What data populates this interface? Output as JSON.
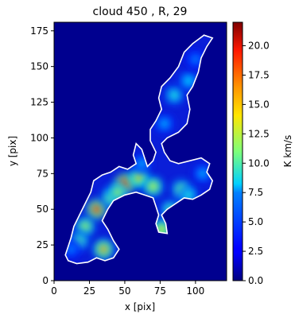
{
  "chart_data": {
    "type": "heatmap",
    "title": "cloud 450 , R, 29",
    "xlabel": "x [pix]",
    "ylabel": "y [pix]",
    "xlim": [
      0,
      122
    ],
    "ylim": [
      0,
      181
    ],
    "xticks": [
      0,
      25,
      50,
      75,
      100
    ],
    "yticks": [
      0,
      25,
      50,
      75,
      100,
      125,
      150,
      175
    ],
    "colorbar": {
      "label": "K km/s",
      "range": [
        0.0,
        22.0
      ],
      "ticks": [
        "0.0",
        "2.5",
        "5.0",
        "7.5",
        "10.0",
        "12.5",
        "15.0",
        "17.5",
        "20.0"
      ],
      "colormap": "jet"
    },
    "background_color": "#00008f",
    "contour_color": "#ffffff",
    "emission_blobs": [
      {
        "x": 30,
        "y": 50,
        "value": 18
      },
      {
        "x": 35,
        "y": 22,
        "value": 16
      },
      {
        "x": 50,
        "y": 68,
        "value": 19
      },
      {
        "x": 60,
        "y": 72,
        "value": 15
      },
      {
        "x": 70,
        "y": 66,
        "value": 13
      },
      {
        "x": 22,
        "y": 38,
        "value": 12
      },
      {
        "x": 18,
        "y": 28,
        "value": 10
      },
      {
        "x": 40,
        "y": 58,
        "value": 11
      },
      {
        "x": 82,
        "y": 50,
        "value": 10
      },
      {
        "x": 90,
        "y": 64,
        "value": 11
      },
      {
        "x": 76,
        "y": 36,
        "value": 14
      },
      {
        "x": 95,
        "y": 60,
        "value": 9
      },
      {
        "x": 85,
        "y": 130,
        "value": 9
      },
      {
        "x": 95,
        "y": 140,
        "value": 8
      },
      {
        "x": 78,
        "y": 110,
        "value": 7
      },
      {
        "x": 100,
        "y": 155,
        "value": 6
      },
      {
        "x": 62,
        "y": 82,
        "value": 7
      },
      {
        "x": 45,
        "y": 62,
        "value": 12
      },
      {
        "x": 12,
        "y": 22,
        "value": 6
      },
      {
        "x": 105,
        "y": 75,
        "value": 7
      }
    ]
  }
}
